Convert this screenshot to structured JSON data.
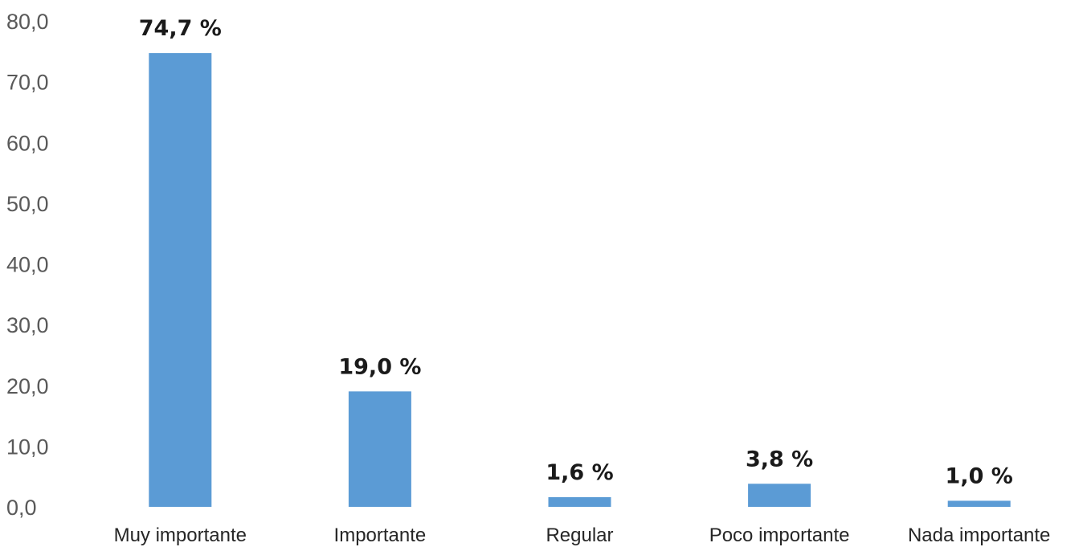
{
  "chart_data": {
    "type": "bar",
    "title": "",
    "xlabel": "",
    "ylabel": "",
    "categories": [
      "Muy importante",
      "Importante",
      "Regular",
      "Poco importante",
      "Nada importante"
    ],
    "values": [
      74.7,
      19.0,
      1.6,
      3.8,
      1.0
    ],
    "data_labels": [
      "74,7 %",
      "19,0 %",
      "1,6 %",
      "3,8 %",
      "1,0 %"
    ],
    "ylim": [
      0,
      80
    ],
    "y_ticks": [
      "0,0",
      "10,0",
      "20,0",
      "30,0",
      "40,0",
      "50,0",
      "60,0",
      "70,0",
      "80,0"
    ],
    "grid": false,
    "legend": "none",
    "bar_color": "#5b9bd5"
  }
}
